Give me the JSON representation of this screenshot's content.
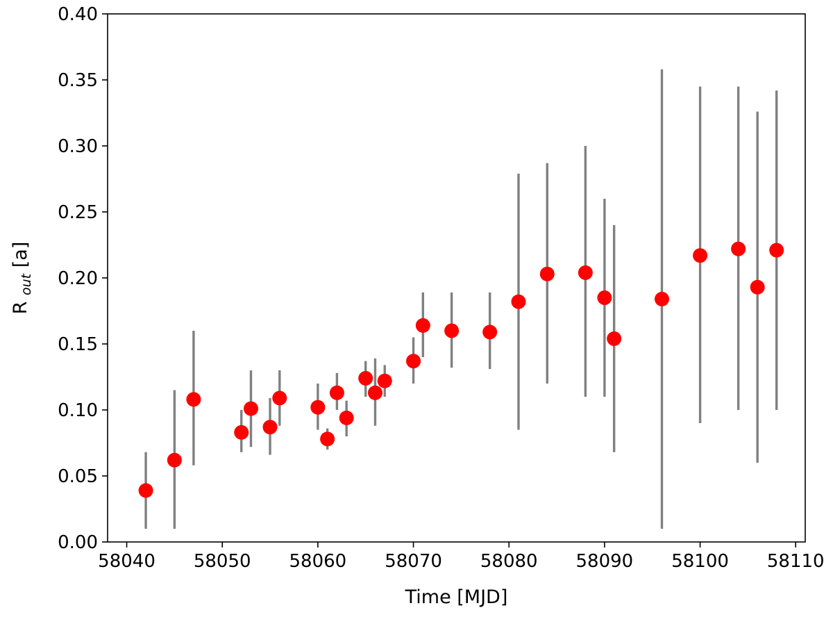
{
  "chart_data": {
    "type": "scatter",
    "title": "",
    "xlabel": "Time [MJD]",
    "ylabel_main": "R",
    "ylabel_sub": "out",
    "ylabel_tail": "[a]",
    "xlim": [
      58038,
      58111
    ],
    "ylim": [
      0.0,
      0.4
    ],
    "xticks": [
      58040,
      58050,
      58060,
      58070,
      58080,
      58090,
      58100,
      58110
    ],
    "xtick_labels": [
      "58040",
      "58050",
      "58060",
      "58070",
      "58080",
      "58090",
      "58100",
      "58110"
    ],
    "yticks": [
      0.0,
      0.05,
      0.1,
      0.15,
      0.2,
      0.25,
      0.3,
      0.35,
      0.4
    ],
    "ytick_labels": [
      "0.00",
      "0.05",
      "0.10",
      "0.15",
      "0.20",
      "0.25",
      "0.30",
      "0.35",
      "0.40"
    ],
    "grid": false,
    "colors": {
      "marker": "#ff0000",
      "errorbar": "#808080",
      "axis": "#000000"
    },
    "points": [
      {
        "x": 58042,
        "y": 0.039,
        "ylo": 0.01,
        "yhi": 0.068
      },
      {
        "x": 58045,
        "y": 0.062,
        "ylo": 0.01,
        "yhi": 0.115
      },
      {
        "x": 58047,
        "y": 0.108,
        "ylo": 0.058,
        "yhi": 0.16
      },
      {
        "x": 58052,
        "y": 0.083,
        "ylo": 0.068,
        "yhi": 0.1
      },
      {
        "x": 58053,
        "y": 0.101,
        "ylo": 0.072,
        "yhi": 0.13
      },
      {
        "x": 58055,
        "y": 0.087,
        "ylo": 0.066,
        "yhi": 0.109
      },
      {
        "x": 58056,
        "y": 0.109,
        "ylo": 0.088,
        "yhi": 0.13
      },
      {
        "x": 58060,
        "y": 0.102,
        "ylo": 0.085,
        "yhi": 0.12
      },
      {
        "x": 58061,
        "y": 0.078,
        "ylo": 0.07,
        "yhi": 0.086
      },
      {
        "x": 58062,
        "y": 0.113,
        "ylo": 0.1,
        "yhi": 0.128
      },
      {
        "x": 58063,
        "y": 0.094,
        "ylo": 0.08,
        "yhi": 0.107
      },
      {
        "x": 58065,
        "y": 0.124,
        "ylo": 0.11,
        "yhi": 0.137
      },
      {
        "x": 58066,
        "y": 0.113,
        "ylo": 0.088,
        "yhi": 0.139
      },
      {
        "x": 58067,
        "y": 0.122,
        "ylo": 0.11,
        "yhi": 0.134
      },
      {
        "x": 58070,
        "y": 0.137,
        "ylo": 0.12,
        "yhi": 0.155
      },
      {
        "x": 58071,
        "y": 0.164,
        "ylo": 0.14,
        "yhi": 0.189
      },
      {
        "x": 58074,
        "y": 0.16,
        "ylo": 0.132,
        "yhi": 0.189
      },
      {
        "x": 58078,
        "y": 0.159,
        "ylo": 0.131,
        "yhi": 0.189
      },
      {
        "x": 58081,
        "y": 0.182,
        "ylo": 0.085,
        "yhi": 0.279
      },
      {
        "x": 58084,
        "y": 0.203,
        "ylo": 0.12,
        "yhi": 0.287
      },
      {
        "x": 58088,
        "y": 0.204,
        "ylo": 0.11,
        "yhi": 0.3
      },
      {
        "x": 58090,
        "y": 0.185,
        "ylo": 0.11,
        "yhi": 0.26
      },
      {
        "x": 58091,
        "y": 0.154,
        "ylo": 0.068,
        "yhi": 0.24
      },
      {
        "x": 58096,
        "y": 0.184,
        "ylo": 0.01,
        "yhi": 0.358
      },
      {
        "x": 58100,
        "y": 0.217,
        "ylo": 0.09,
        "yhi": 0.345
      },
      {
        "x": 58104,
        "y": 0.222,
        "ylo": 0.1,
        "yhi": 0.345
      },
      {
        "x": 58106,
        "y": 0.193,
        "ylo": 0.06,
        "yhi": 0.326
      },
      {
        "x": 58108,
        "y": 0.221,
        "ylo": 0.1,
        "yhi": 0.342
      }
    ]
  }
}
